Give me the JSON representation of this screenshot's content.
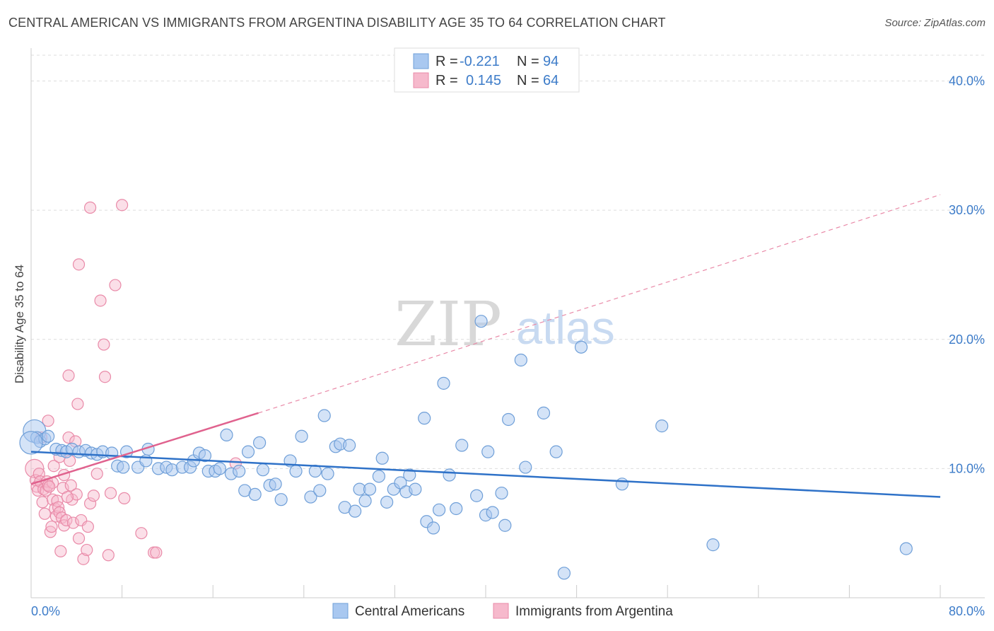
{
  "title": "CENTRAL AMERICAN VS IMMIGRANTS FROM ARGENTINA DISABILITY AGE 35 TO 64 CORRELATION CHART",
  "source": "Source: ZipAtlas.com",
  "watermark": {
    "zip": "ZIP",
    "atlas": "atlas"
  },
  "colors": {
    "blue_fill": "#a9c8f0",
    "blue_stroke": "#6f9fd8",
    "blue_line": "#2f72c8",
    "pink_fill": "#f6b9cc",
    "pink_stroke": "#e98aa8",
    "pink_line": "#e0628e",
    "tick_text": "#3d7cc9",
    "grid": "#dddddd"
  },
  "legend": {
    "series": [
      {
        "r_label": "R =",
        "r_value": "-0.221",
        "n_label": "N =",
        "n_value": "94",
        "color": "blue"
      },
      {
        "r_label": "R =",
        "r_value": "0.145",
        "n_label": "N =",
        "n_value": "64",
        "color": "pink"
      }
    ]
  },
  "bottom_legend": [
    "Central Americans",
    "Immigrants from Argentina"
  ],
  "chart_data": {
    "type": "scatter",
    "title": "CENTRAL AMERICAN VS IMMIGRANTS FROM ARGENTINA DISABILITY AGE 35 TO 64 CORRELATION CHART",
    "xlabel": "",
    "ylabel": "Disability Age 35 to 64",
    "xlim": [
      0,
      80
    ],
    "ylim": [
      0,
      42
    ],
    "x_tick_labels": {
      "left": "0.0%",
      "right": "80.0%"
    },
    "y_ticks": [
      10,
      20,
      30,
      40
    ],
    "y_tick_labels": [
      "10.0%",
      "20.0%",
      "30.0%",
      "40.0%"
    ],
    "series": [
      {
        "name": "Central Americans",
        "color": "blue",
        "points": [
          [
            0.3,
            12.9
          ],
          [
            0.5,
            12.4
          ],
          [
            0.8,
            12.1
          ],
          [
            1.2,
            12.3
          ],
          [
            1.5,
            12.5
          ],
          [
            2.2,
            11.5
          ],
          [
            2.7,
            11.4
          ],
          [
            3.1,
            11.3
          ],
          [
            3.6,
            11.5
          ],
          [
            4.2,
            11.3
          ],
          [
            4.8,
            11.4
          ],
          [
            5.3,
            11.2
          ],
          [
            5.8,
            11.1
          ],
          [
            6.3,
            11.3
          ],
          [
            7.1,
            11.2
          ],
          [
            8.4,
            11.3
          ],
          [
            7.6,
            10.2
          ],
          [
            8.1,
            10.1
          ],
          [
            9.4,
            10.1
          ],
          [
            10.3,
            11.5
          ],
          [
            10.1,
            10.6
          ],
          [
            11.2,
            10.0
          ],
          [
            11.9,
            10.1
          ],
          [
            12.4,
            9.9
          ],
          [
            13.3,
            10.1
          ],
          [
            14.0,
            10.1
          ],
          [
            14.3,
            10.6
          ],
          [
            14.8,
            11.2
          ],
          [
            15.3,
            11.0
          ],
          [
            15.6,
            9.8
          ],
          [
            16.2,
            9.8
          ],
          [
            16.6,
            10.0
          ],
          [
            17.2,
            12.6
          ],
          [
            17.6,
            9.6
          ],
          [
            18.3,
            9.8
          ],
          [
            18.8,
            8.3
          ],
          [
            19.1,
            11.3
          ],
          [
            19.7,
            8.0
          ],
          [
            20.1,
            12.0
          ],
          [
            20.4,
            9.9
          ],
          [
            21.0,
            8.7
          ],
          [
            21.5,
            8.8
          ],
          [
            22.0,
            7.6
          ],
          [
            22.8,
            10.6
          ],
          [
            23.3,
            9.8
          ],
          [
            23.8,
            12.5
          ],
          [
            24.6,
            7.8
          ],
          [
            25.0,
            9.8
          ],
          [
            25.4,
            8.3
          ],
          [
            25.8,
            14.1
          ],
          [
            26.1,
            9.6
          ],
          [
            26.8,
            11.7
          ],
          [
            27.2,
            11.9
          ],
          [
            27.6,
            7.0
          ],
          [
            28.0,
            11.8
          ],
          [
            28.5,
            6.7
          ],
          [
            28.9,
            8.4
          ],
          [
            29.4,
            7.5
          ],
          [
            29.8,
            8.4
          ],
          [
            30.6,
            9.4
          ],
          [
            30.9,
            10.8
          ],
          [
            31.3,
            7.4
          ],
          [
            31.9,
            8.4
          ],
          [
            32.5,
            8.9
          ],
          [
            33.0,
            8.2
          ],
          [
            33.3,
            9.5
          ],
          [
            33.8,
            8.4
          ],
          [
            34.6,
            13.9
          ],
          [
            34.8,
            5.9
          ],
          [
            35.4,
            5.4
          ],
          [
            35.9,
            6.8
          ],
          [
            36.3,
            16.6
          ],
          [
            36.8,
            9.5
          ],
          [
            37.4,
            6.9
          ],
          [
            37.9,
            11.8
          ],
          [
            39.2,
            7.9
          ],
          [
            40.0,
            6.4
          ],
          [
            40.2,
            11.3
          ],
          [
            40.6,
            6.6
          ],
          [
            41.4,
            8.1
          ],
          [
            41.7,
            5.6
          ],
          [
            42.0,
            13.8
          ],
          [
            43.1,
            18.4
          ],
          [
            43.5,
            10.1
          ],
          [
            45.1,
            14.3
          ],
          [
            46.2,
            11.3
          ],
          [
            46.9,
            1.9
          ],
          [
            48.4,
            19.4
          ],
          [
            39.6,
            21.4
          ],
          [
            52.0,
            8.8
          ],
          [
            55.5,
            13.3
          ],
          [
            60.0,
            4.1
          ],
          [
            77.0,
            3.8
          ],
          [
            0.0,
            12.0
          ]
        ],
        "trend": {
          "x": [
            0,
            80
          ],
          "y": [
            11.3,
            7.8
          ]
        }
      },
      {
        "name": "Immigrants from Argentina",
        "color": "pink",
        "points": [
          [
            0.3,
            10.0
          ],
          [
            0.4,
            9.1
          ],
          [
            0.5,
            8.6
          ],
          [
            0.6,
            8.3
          ],
          [
            0.7,
            9.6
          ],
          [
            0.8,
            9.0
          ],
          [
            1.0,
            7.4
          ],
          [
            1.1,
            8.4
          ],
          [
            1.3,
            8.3
          ],
          [
            1.4,
            9.0
          ],
          [
            1.5,
            8.7
          ],
          [
            1.7,
            5.1
          ],
          [
            1.8,
            5.5
          ],
          [
            1.9,
            7.6
          ],
          [
            2.0,
            10.2
          ],
          [
            2.1,
            6.9
          ],
          [
            2.2,
            6.3
          ],
          [
            2.3,
            7.5
          ],
          [
            2.4,
            7.0
          ],
          [
            2.5,
            6.6
          ],
          [
            2.7,
            6.2
          ],
          [
            2.8,
            8.5
          ],
          [
            2.9,
            5.6
          ],
          [
            3.1,
            6.0
          ],
          [
            3.3,
            12.4
          ],
          [
            3.4,
            10.6
          ],
          [
            3.5,
            8.7
          ],
          [
            3.6,
            7.6
          ],
          [
            3.7,
            5.8
          ],
          [
            3.9,
            12.1
          ],
          [
            4.0,
            8.0
          ],
          [
            4.2,
            4.6
          ],
          [
            4.4,
            6.0
          ],
          [
            4.6,
            3.0
          ],
          [
            4.9,
            3.7
          ],
          [
            5.0,
            5.5
          ],
          [
            5.2,
            7.3
          ],
          [
            5.5,
            7.9
          ],
          [
            5.8,
            9.6
          ],
          [
            6.1,
            23.0
          ],
          [
            6.4,
            19.6
          ],
          [
            6.5,
            17.1
          ],
          [
            6.8,
            3.3
          ],
          [
            7.0,
            8.1
          ],
          [
            7.4,
            24.2
          ],
          [
            8.0,
            30.4
          ],
          [
            8.2,
            7.7
          ],
          [
            9.7,
            5.0
          ],
          [
            10.8,
            3.5
          ],
          [
            11.0,
            3.5
          ],
          [
            18.0,
            10.4
          ],
          [
            3.3,
            17.2
          ],
          [
            4.1,
            15.0
          ],
          [
            4.2,
            25.8
          ],
          [
            5.2,
            30.2
          ],
          [
            1.5,
            13.7
          ],
          [
            1.9,
            8.9
          ],
          [
            2.9,
            9.5
          ],
          [
            2.5,
            10.9
          ],
          [
            3.2,
            7.8
          ],
          [
            0.9,
            12.4
          ],
          [
            1.2,
            6.5
          ],
          [
            2.6,
            3.6
          ],
          [
            1.6,
            8.6
          ]
        ],
        "trend": {
          "x": [
            0,
            20
          ],
          "y": [
            8.8,
            14.3
          ]
        },
        "trend_extension": {
          "x": [
            20,
            80
          ],
          "y": [
            14.3,
            31.2
          ]
        }
      }
    ]
  }
}
